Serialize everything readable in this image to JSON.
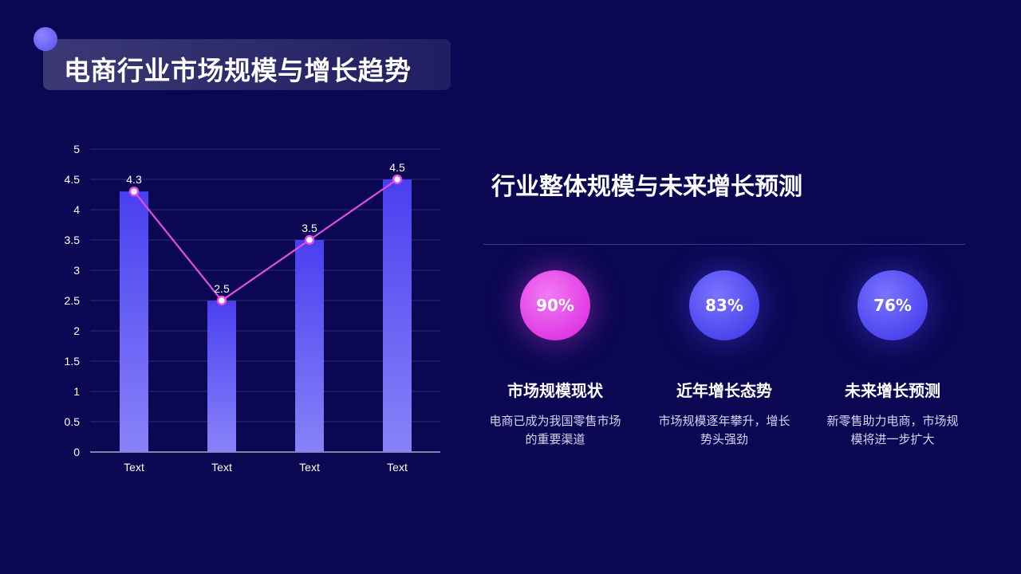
{
  "header": {
    "title": "电商行业市场规模与增长趋势"
  },
  "right_panel": {
    "subtitle": "行业整体规模与未来增长预测",
    "stats": [
      {
        "value": "90%",
        "heading": "市场规模现状",
        "desc": "电商已成为我国零售市场的重要渠道",
        "color": "#e84ae8"
      },
      {
        "value": "83%",
        "heading": "近年增长态势",
        "desc": "市场规模逐年攀升，增长势头强劲",
        "color": "#5149f0"
      },
      {
        "value": "76%",
        "heading": "未来增长预测",
        "desc": "新零售助力电商，市场规模将进一步扩大",
        "color": "#5149f0"
      }
    ]
  },
  "chart_data": {
    "type": "bar",
    "categories": [
      "Text",
      "Text",
      "Text",
      "Text"
    ],
    "series": [
      {
        "type": "bar",
        "values": [
          4.3,
          2.5,
          3.5,
          4.5
        ],
        "color": "#5146f2"
      },
      {
        "type": "line",
        "values": [
          4.3,
          2.5,
          3.5,
          4.5
        ],
        "color": "#e14ee6"
      }
    ],
    "data_labels": [
      "4.3",
      "2.5",
      "3.5",
      "4.5"
    ],
    "y_ticks": [
      "0",
      "0.5",
      "1",
      "1.5",
      "2",
      "2.5",
      "3",
      "3.5",
      "4",
      "4.5",
      "5"
    ],
    "ylim": [
      0,
      5
    ],
    "grid": true,
    "legend": "none",
    "title": "",
    "xlabel": "",
    "ylabel": ""
  }
}
